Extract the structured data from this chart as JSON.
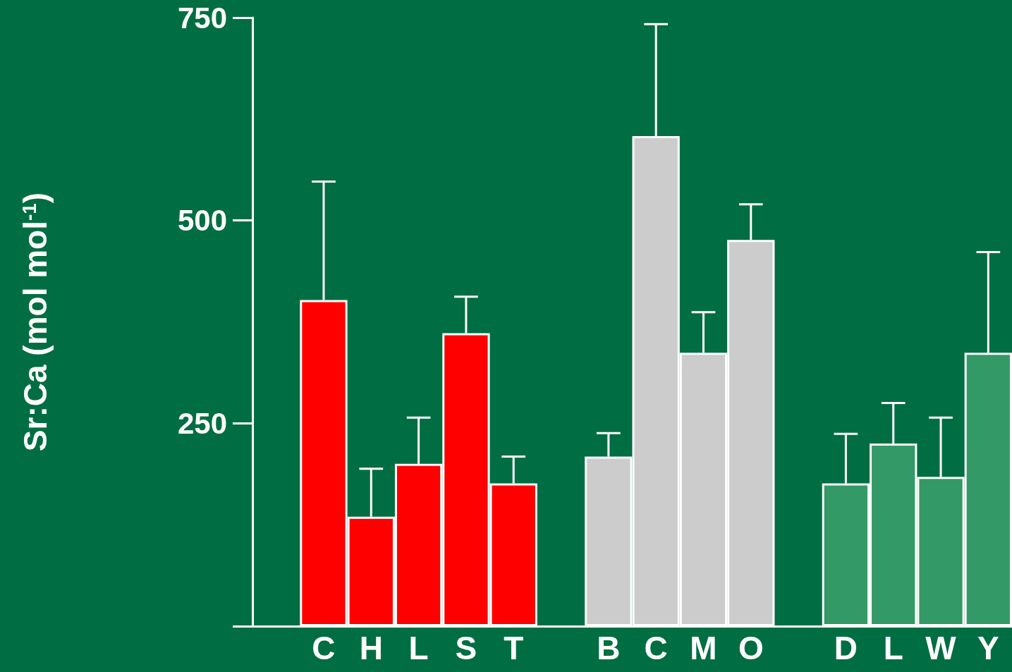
{
  "chart_data": {
    "type": "bar",
    "ylabel": "Sr:Ca (mol mol$^{-1}$)",
    "categories": [
      null,
      "C",
      "H",
      "L",
      "S",
      "T",
      null,
      "B",
      "C",
      "M",
      "O",
      null,
      "D",
      "L",
      "W",
      "Y"
    ],
    "values": [
      null,
      402,
      135,
      200,
      361,
      176,
      null,
      209,
      604,
      337,
      476,
      null,
      176,
      225,
      184,
      337
    ],
    "colors": [
      "#ff0000",
      "#ff0000",
      "#ff0000",
      "#ff0000",
      "#ff0000",
      "#ff0000",
      "#cccccc",
      "#cccccc",
      "#cccccc",
      "#cccccc",
      "#cccccc",
      "#339966",
      "#339966",
      "#339966",
      "#339966",
      "#339966"
    ],
    "errors": [
      null,
      [
        402,
        548
      ],
      [
        135,
        194
      ],
      [
        200,
        257
      ],
      [
        361,
        406
      ],
      [
        176,
        209
      ],
      null,
      [
        209,
        238
      ],
      [
        604,
        742
      ],
      [
        337,
        387
      ],
      [
        476,
        520
      ],
      null,
      [
        176,
        237
      ],
      [
        225,
        275
      ],
      [
        184,
        257
      ],
      [
        337,
        461
      ]
    ],
    "ylim": [
      0,
      750
    ],
    "yticks": [
      {
        "value": 0,
        "label": null
      },
      250,
      500,
      750
    ],
    "grid": false
  }
}
